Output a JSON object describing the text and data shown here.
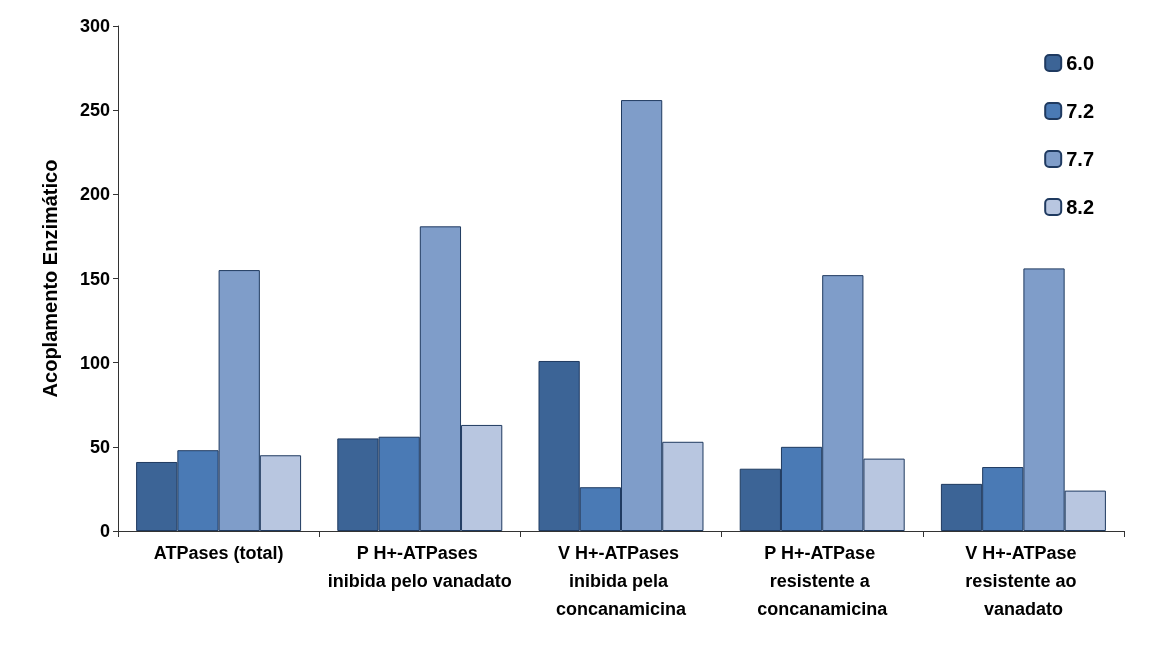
{
  "chart_data": {
    "type": "bar",
    "ylabel": "Acoplamento Enzimático",
    "categories": [
      "ATPases (total)",
      "P H+-ATPases inibida pelo vanadato",
      "V H+-ATPases inibida pela concanamicina",
      "P H+-ATPase resistente a concanamicina",
      "V H+-ATPase resistente ao vanadato"
    ],
    "series": [
      {
        "name": "6.0",
        "color": "#3c6496",
        "values": [
          41,
          55,
          101,
          37,
          28
        ]
      },
      {
        "name": "7.2",
        "color": "#4a7ab5",
        "values": [
          48,
          56,
          26,
          50,
          38
        ]
      },
      {
        "name": "7.7",
        "color": "#7f9dc9",
        "values": [
          155,
          181,
          256,
          152,
          156
        ]
      },
      {
        "name": "8.2",
        "color": "#b8c6e0",
        "values": [
          45,
          63,
          53,
          43,
          24
        ]
      }
    ],
    "ylim": [
      0,
      300
    ],
    "yticks": [
      0,
      50,
      100,
      150,
      200,
      250,
      300
    ],
    "grid": false,
    "legend": "top right"
  }
}
